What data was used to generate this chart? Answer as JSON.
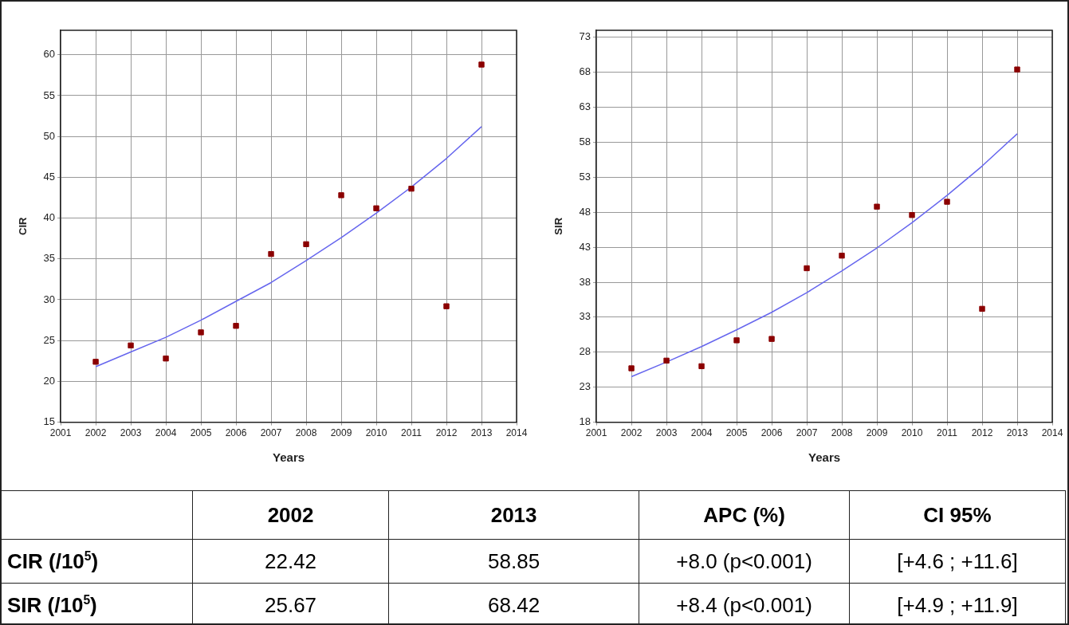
{
  "chart_data": [
    {
      "type": "scatter",
      "xlabel": "Years",
      "ylabel": "CIR",
      "xlim": [
        2001,
        2014
      ],
      "xticks": [
        2001,
        2002,
        2003,
        2004,
        2005,
        2006,
        2007,
        2008,
        2009,
        2010,
        2011,
        2012,
        2013,
        2014
      ],
      "ylim": [
        15,
        63
      ],
      "yticks": [
        15,
        20,
        25,
        30,
        35,
        40,
        45,
        50,
        55,
        60
      ],
      "grid": true,
      "marker": "square",
      "x": [
        2002,
        2003,
        2004,
        2005,
        2006,
        2007,
        2008,
        2009,
        2010,
        2011,
        2012,
        2013
      ],
      "series": [
        {
          "color": "#8b0000",
          "values": [
            22.4,
            24.4,
            22.8,
            26.0,
            26.8,
            35.6,
            36.8,
            42.8,
            41.2,
            43.6,
            29.2,
            58.8
          ]
        },
        {
          "type": "line",
          "color": "#6666ee",
          "marker": "none",
          "x": [
            2002,
            2003,
            2004,
            2005,
            2006,
            2007,
            2008,
            2009,
            2010,
            2011,
            2012,
            2013
          ],
          "values": [
            21.8,
            23.6,
            25.4,
            27.5,
            29.8,
            32.1,
            34.8,
            37.6,
            40.6,
            43.8,
            47.3,
            51.2
          ]
        }
      ]
    },
    {
      "type": "scatter",
      "xlabel": "Years",
      "ylabel": "SIR",
      "xlim": [
        2001,
        2014
      ],
      "xticks": [
        2001,
        2002,
        2003,
        2004,
        2005,
        2006,
        2007,
        2008,
        2009,
        2010,
        2011,
        2012,
        2013,
        2014
      ],
      "ylim": [
        18,
        74
      ],
      "yticks": [
        18,
        23,
        28,
        33,
        38,
        43,
        48,
        53,
        58,
        63,
        68,
        73
      ],
      "grid": true,
      "marker": "square",
      "x": [
        2002,
        2003,
        2004,
        2005,
        2006,
        2007,
        2008,
        2009,
        2010,
        2011,
        2012,
        2013
      ],
      "series": [
        {
          "color": "#8b0000",
          "values": [
            25.7,
            26.8,
            26.0,
            29.7,
            29.9,
            40.0,
            41.8,
            48.8,
            47.6,
            49.5,
            34.2,
            68.4
          ]
        },
        {
          "type": "line",
          "color": "#6666ee",
          "marker": "none",
          "x": [
            2002,
            2003,
            2004,
            2005,
            2006,
            2007,
            2008,
            2009,
            2010,
            2011,
            2012,
            2013
          ],
          "values": [
            24.5,
            26.6,
            28.8,
            31.2,
            33.7,
            36.5,
            39.6,
            42.9,
            46.5,
            50.4,
            54.6,
            59.2
          ]
        }
      ]
    },
    {
      "type": "other",
      "categories": [
        null,
        "2002",
        "2013",
        "APC (%)",
        "CI 95%"
      ],
      "y_categories": [
        "CIR (/10$^{5}$)",
        "SIR (/10$^{5}$)"
      ],
      "cell_labels": [
        [
          "22.42",
          "58.85",
          "+8.0 (p<0.001)",
          "[+4.6 ; +11.6]"
        ],
        [
          "25.67",
          "68.42",
          "+8.4 (p<0.001)",
          "[+4.9 ; +11.9]"
        ]
      ]
    }
  ]
}
